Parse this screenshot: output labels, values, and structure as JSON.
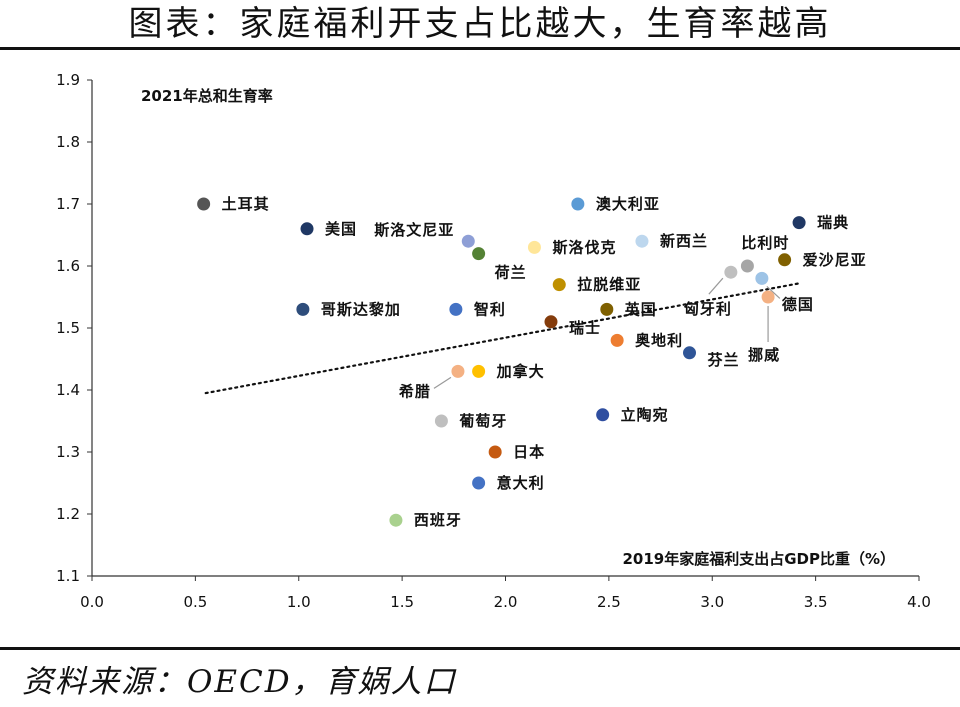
{
  "header": {
    "title": "图表：家庭福利开支占比越大，生育率越高"
  },
  "footer": {
    "source": "资料来源：OECD，育娲人口"
  },
  "chart_data": {
    "type": "scatter",
    "title": "图表：家庭福利开支占比越大，生育率越高",
    "xlabel": "2019年家庭福利支出占GDP比重（%）",
    "ylabel": "2021年总和生育率",
    "xlim": [
      0.0,
      4.0
    ],
    "ylim": [
      1.1,
      1.9
    ],
    "x_ticks": [
      "0.0",
      "0.5",
      "1.0",
      "1.5",
      "2.0",
      "2.5",
      "3.0",
      "3.5",
      "4.0"
    ],
    "y_ticks": [
      "1.9",
      "1.8",
      "1.7",
      "1.6",
      "1.5",
      "1.4",
      "1.3",
      "1.2",
      "1.1"
    ],
    "grid": false,
    "trendline": {
      "style": "dotted",
      "x": [
        0.55,
        3.42
      ],
      "y": [
        1.395,
        1.572
      ]
    },
    "points": [
      {
        "name": "土耳其",
        "x": 0.54,
        "y": 1.7,
        "color": "#555555"
      },
      {
        "name": "美国",
        "x": 1.04,
        "y": 1.66,
        "color": "#1f3864"
      },
      {
        "name": "斯洛文尼亚",
        "x": 1.82,
        "y": 1.64,
        "color": "#8e9fd6"
      },
      {
        "name": "荷兰",
        "x": 1.87,
        "y": 1.62,
        "color": "#548235"
      },
      {
        "name": "斯洛伐克",
        "x": 2.14,
        "y": 1.63,
        "color": "#ffe699"
      },
      {
        "name": "澳大利亚",
        "x": 2.35,
        "y": 1.7,
        "color": "#5b9bd5"
      },
      {
        "name": "新西兰",
        "x": 2.66,
        "y": 1.64,
        "color": "#bdd7ee"
      },
      {
        "name": "比利时",
        "x": 3.17,
        "y": 1.6,
        "color": "#a6a6a6"
      },
      {
        "name": "瑞典",
        "x": 3.42,
        "y": 1.67,
        "color": "#203864"
      },
      {
        "name": "爱沙尼亚",
        "x": 3.35,
        "y": 1.61,
        "color": "#806000"
      },
      {
        "name": "匈牙利",
        "x": 3.09,
        "y": 1.59,
        "color": "#bfbfbf"
      },
      {
        "name": "德国",
        "x": 3.24,
        "y": 1.58,
        "color": "#9dc3e6"
      },
      {
        "name": "挪威",
        "x": 3.27,
        "y": 1.55,
        "color": "#f4b183"
      },
      {
        "name": "拉脱维亚",
        "x": 2.26,
        "y": 1.57,
        "color": "#bf9000"
      },
      {
        "name": "英国",
        "x": 2.49,
        "y": 1.53,
        "color": "#7f6000"
      },
      {
        "name": "瑞士",
        "x": 2.22,
        "y": 1.51,
        "color": "#843c0c"
      },
      {
        "name": "奥地利",
        "x": 2.54,
        "y": 1.48,
        "color": "#ed7d31"
      },
      {
        "name": "芬兰",
        "x": 2.89,
        "y": 1.46,
        "color": "#2f5597"
      },
      {
        "name": "哥斯达黎加",
        "x": 1.02,
        "y": 1.53,
        "color": "#2e4d7b"
      },
      {
        "name": "智利",
        "x": 1.76,
        "y": 1.53,
        "color": "#4472c4"
      },
      {
        "name": "希腊",
        "x": 1.77,
        "y": 1.43,
        "color": "#f4b183"
      },
      {
        "name": "加拿大",
        "x": 1.87,
        "y": 1.43,
        "color": "#ffc000"
      },
      {
        "name": "葡萄牙",
        "x": 1.69,
        "y": 1.35,
        "color": "#bfbfbf"
      },
      {
        "name": "立陶宛",
        "x": 2.47,
        "y": 1.36,
        "color": "#2f4ea0"
      },
      {
        "name": "日本",
        "x": 1.95,
        "y": 1.3,
        "color": "#c55a11"
      },
      {
        "name": "意大利",
        "x": 1.87,
        "y": 1.25,
        "color": "#4472c4"
      },
      {
        "name": "西班牙",
        "x": 1.47,
        "y": 1.19,
        "color": "#a9d18e"
      }
    ]
  }
}
